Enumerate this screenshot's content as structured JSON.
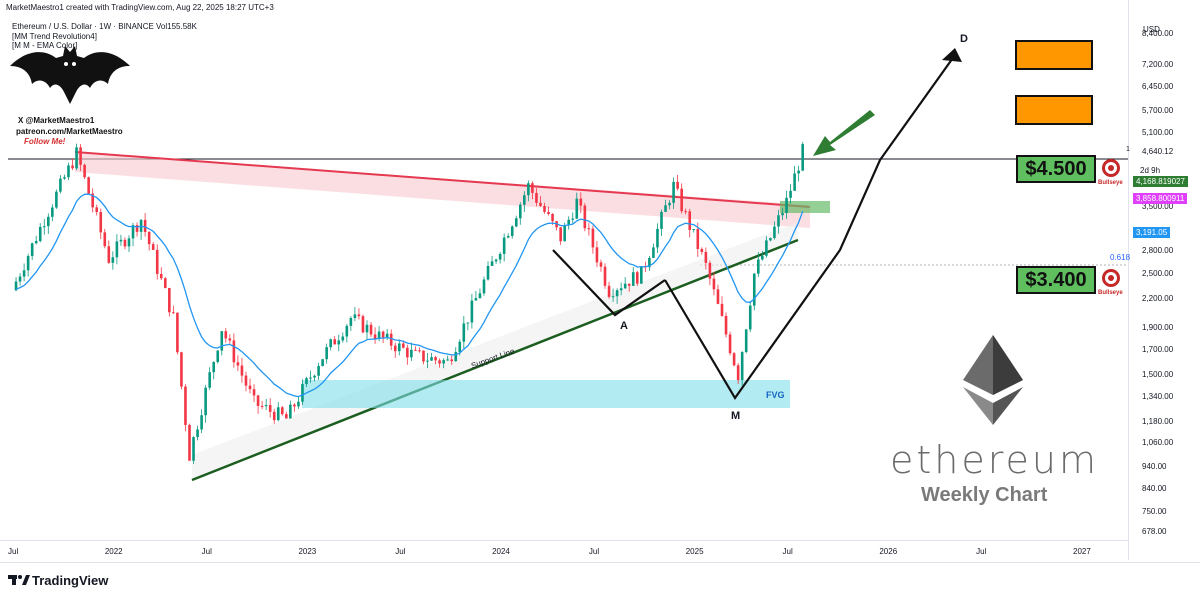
{
  "header": {
    "attribution": "MarketMaestro1 created with TradingView.com, Aug 22, 2025 18:27 UTC+3",
    "symbol_line": "Ethereum / U.S. Dollar · 1W · BINANCE   Vol155.58K",
    "indicators": [
      "[MM Trend Revolution4]",
      "[M M - EMA Color]"
    ]
  },
  "logo": {
    "handle": "X @MarketMaestro1",
    "patreon": "patreon.com/MarketMaestro",
    "follow": "Follow Me!"
  },
  "chart_data": {
    "type": "line",
    "title": "",
    "currency": "USD",
    "y_scale": "log",
    "ylim": [
      650,
      9500
    ],
    "x_ticks": [
      "Jul",
      "2022",
      "Jul",
      "2023",
      "Jul",
      "2024",
      "Jul",
      "2025",
      "Jul",
      "2026",
      "Jul",
      "2027"
    ],
    "y_ticks": [
      "8,400.00",
      "7,200.00",
      "6,450.00",
      "5,700.00",
      "5,100.00",
      "4,640.12",
      "3,500.00",
      "2,800.00",
      "2,500.00",
      "2,200.00",
      "1,900.00",
      "1,700.00",
      "1,500.00",
      "1,340.00",
      "1,180.00",
      "1,060.00",
      "940.00",
      "840.00",
      "750.00",
      "678.00"
    ],
    "series": [
      {
        "values": [
          {
            "x": "2021-07",
            "y": 2300
          },
          {
            "x": "2021-09",
            "y": 3300
          },
          {
            "x": "2021-11",
            "y": 4600
          },
          {
            "x": "2022-01",
            "y": 2700
          },
          {
            "x": "2022-03",
            "y": 3300
          },
          {
            "x": "2022-05",
            "y": 2000
          },
          {
            "x": "2022-06",
            "y": 1000
          },
          {
            "x": "2022-08",
            "y": 1900
          },
          {
            "x": "2022-10",
            "y": 1300
          },
          {
            "x": "2022-12",
            "y": 1200
          },
          {
            "x": "2023-02",
            "y": 1600
          },
          {
            "x": "2023-04",
            "y": 2000
          },
          {
            "x": "2023-06",
            "y": 1800
          },
          {
            "x": "2023-08",
            "y": 1650
          },
          {
            "x": "2023-10",
            "y": 1600
          },
          {
            "x": "2023-12",
            "y": 2300
          },
          {
            "x": "2024-03",
            "y": 3900
          },
          {
            "x": "2024-05",
            "y": 3000
          },
          {
            "x": "2024-06",
            "y": 3600
          },
          {
            "x": "2024-08",
            "y": 2300
          },
          {
            "x": "2024-10",
            "y": 2500
          },
          {
            "x": "2024-12",
            "y": 3900
          },
          {
            "x": "2025-02",
            "y": 2600
          },
          {
            "x": "2025-04",
            "y": 1500
          },
          {
            "x": "2025-05",
            "y": 2500
          },
          {
            "x": "2025-07",
            "y": 3600
          },
          {
            "x": "2025-08",
            "y": 4640
          }
        ]
      }
    ],
    "price_tags": [
      {
        "label": "4,168.819027",
        "color": "#2e7d32"
      },
      {
        "label": "3,858.800911",
        "color": "#e040fb"
      },
      {
        "label": "3,191.05",
        "color": "#2196f3"
      }
    ],
    "countdown": "2d 9h",
    "tick_marker": "1",
    "fib_label": "0.618",
    "annotations": {
      "support_line": "Support Line",
      "fvg": "FVG",
      "points": [
        "A",
        "M",
        "D"
      ]
    },
    "targets": [
      "$4.500",
      "$3.400"
    ],
    "bullseye_label": "Bullseye"
  },
  "branding": {
    "title": "ethereum",
    "subtitle": "Weekly Chart",
    "platform": "TradingView"
  },
  "colors": {
    "resistance": "#e53950",
    "support": "#1b5e20",
    "fvg": "#80deea",
    "target_box": "#5fbf5f",
    "orange_box": "#ff9800",
    "candle_up": "#089981",
    "candle_down": "#f23645"
  }
}
